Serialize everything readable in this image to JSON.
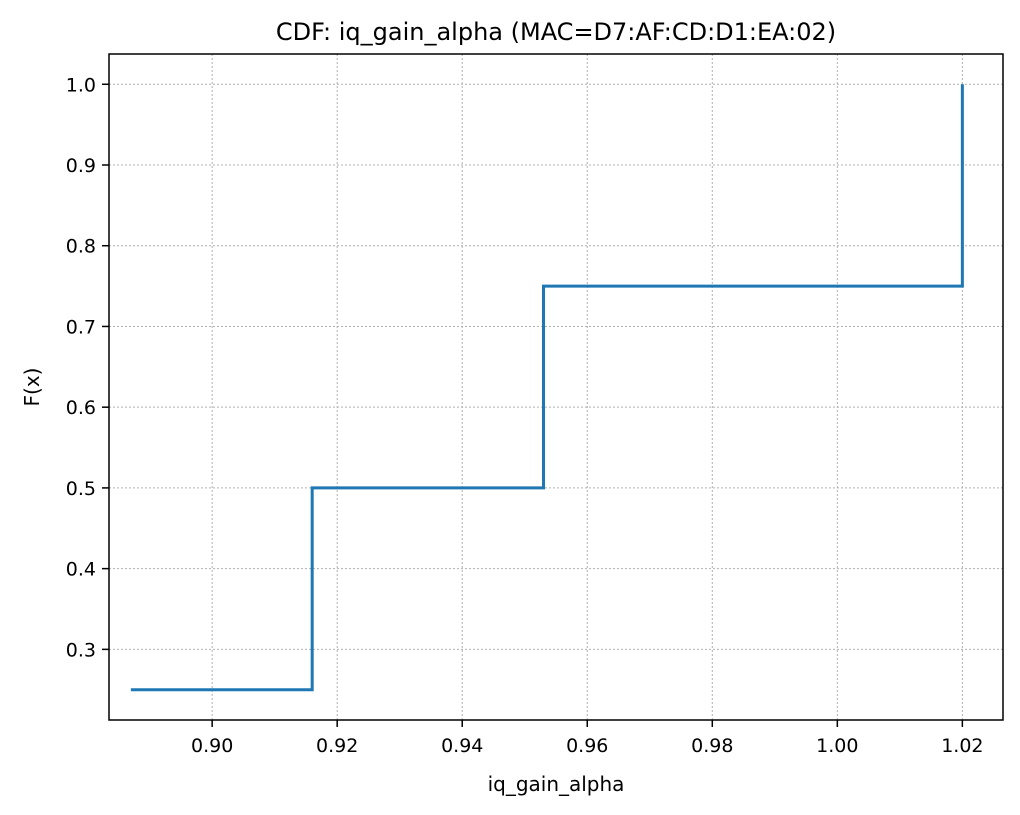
{
  "chart_data": {
    "type": "line",
    "drawstyle": "steps-post",
    "title": "CDF: iq_gain_alpha (MAC=D7:AF:CD:D1:EA:02)",
    "xlabel": "iq_gain_alpha",
    "ylabel": "F(x)",
    "xlim": [
      0.8835,
      1.0265
    ],
    "ylim": [
      0.2125,
      1.0375
    ],
    "xticks": [
      0.9,
      0.92,
      0.94,
      0.96,
      0.98,
      1.0,
      1.02
    ],
    "xtick_labels": [
      "0.90",
      "0.92",
      "0.94",
      "0.96",
      "0.98",
      "1.00",
      "1.02"
    ],
    "yticks": [
      0.3,
      0.4,
      0.5,
      0.6,
      0.7,
      0.8,
      0.9,
      1.0
    ],
    "ytick_labels": [
      "0.3",
      "0.4",
      "0.5",
      "0.6",
      "0.7",
      "0.8",
      "0.9",
      "1.0"
    ],
    "grid": true,
    "grid_style": "dotted",
    "series": [
      {
        "color": "#1f77b4",
        "x": [
          0.887,
          0.916,
          0.953,
          1.02
        ],
        "y": [
          0.25,
          0.5,
          0.75,
          1.0
        ]
      }
    ]
  }
}
